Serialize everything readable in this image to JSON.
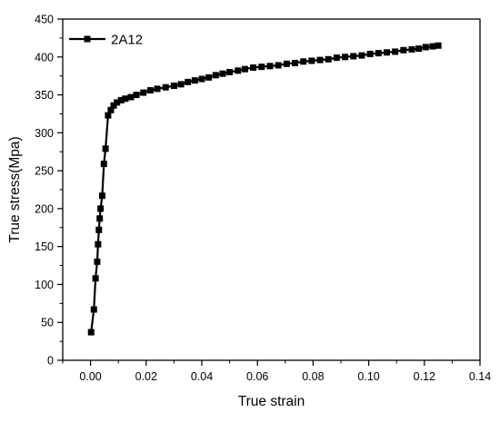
{
  "chart_data": {
    "type": "line",
    "xlabel": "True strain",
    "ylabel": "True stress(Mpa)",
    "xlim": [
      -0.01,
      0.14
    ],
    "ylim": [
      0,
      450
    ],
    "x_ticks": [
      0.0,
      0.02,
      0.04,
      0.06,
      0.08,
      0.1,
      0.12,
      0.14
    ],
    "x_tick_labels": [
      "0.00",
      "0.02",
      "0.04",
      "0.06",
      "0.08",
      "0.10",
      "0.12",
      "0.14"
    ],
    "y_ticks": [
      0,
      50,
      100,
      150,
      200,
      250,
      300,
      350,
      400,
      450
    ],
    "y_tick_labels": [
      "0",
      "50",
      "100",
      "150",
      "200",
      "250",
      "300",
      "350",
      "400",
      "450"
    ],
    "grid": false,
    "legend_position": "top-left",
    "series": [
      {
        "name": "2A12",
        "color": "#000000",
        "marker": "square",
        "x": [
          0.0002,
          0.0012,
          0.0018,
          0.0024,
          0.0027,
          0.003,
          0.0033,
          0.0036,
          0.0042,
          0.0048,
          0.0054,
          0.0063,
          0.0073,
          0.0083,
          0.0095,
          0.011,
          0.0125,
          0.0145,
          0.0165,
          0.019,
          0.0215,
          0.024,
          0.027,
          0.03,
          0.0325,
          0.035,
          0.0375,
          0.04,
          0.0425,
          0.045,
          0.0475,
          0.05,
          0.053,
          0.0555,
          0.0585,
          0.0615,
          0.0645,
          0.0675,
          0.0705,
          0.0735,
          0.0765,
          0.0795,
          0.0825,
          0.0855,
          0.0885,
          0.0915,
          0.0945,
          0.0975,
          0.1005,
          0.1035,
          0.1065,
          0.1095,
          0.1125,
          0.1155,
          0.118,
          0.1205,
          0.123,
          0.125
        ],
        "y": [
          37,
          67,
          108,
          130,
          153,
          172,
          187,
          200,
          217,
          259,
          279,
          323,
          330,
          336,
          340,
          343,
          345,
          347,
          350,
          353,
          356,
          358,
          360,
          362,
          364,
          367,
          369,
          371,
          373,
          376,
          378,
          380,
          382,
          384,
          386,
          387,
          388,
          389,
          391,
          392,
          394,
          395,
          396,
          397,
          399,
          400,
          401,
          402,
          404,
          405,
          406,
          407,
          409,
          410,
          411,
          413,
          414,
          415
        ]
      }
    ]
  }
}
